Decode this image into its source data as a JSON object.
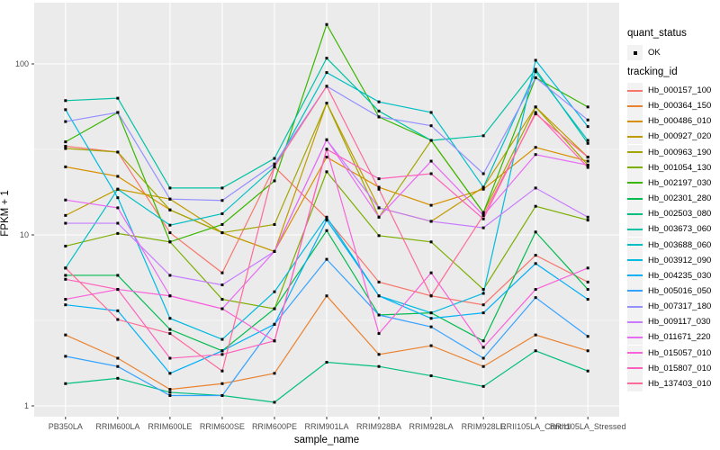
{
  "legend": {
    "quant_title": "quant_status",
    "quant_item": "OK",
    "series_title": "tracking_id"
  },
  "chart_data": {
    "type": "line",
    "title": "",
    "xlabel": "sample_name",
    "ylabel": "FPKM + 1",
    "y_scale": "log10",
    "ylim": [
      0.87,
      200
    ],
    "y_ticks": [
      1,
      10,
      100
    ],
    "y_minor_ticks": [
      3.162,
      31.62
    ],
    "grid": "white-on-gray-panel",
    "panel_bg": "#EBEBEB",
    "key_bg": "#F2F2F2",
    "marker": "small-black-square",
    "legend_position": "right",
    "quant_status_values": [
      "OK"
    ],
    "categories": [
      "PB350LA",
      "RRIM600LA",
      "RRIM600LE",
      "RRIM600SE",
      "RRIM600PE",
      "RRIM901LA",
      "RRIM928BA",
      "RRIM928LA",
      "RRIM928LE",
      "RRII105LA_Control",
      "RRII105LA_Stressed"
    ],
    "series": [
      {
        "name": "Hb_000157_100",
        "color": "#F8766D",
        "values": [
          33,
          30.5,
          10.3,
          6.0,
          25,
          12.5,
          5.3,
          4.4,
          3.9,
          7.6,
          5.3
        ]
      },
      {
        "name": "Hb_000364_150",
        "color": "#EA8331",
        "values": [
          2.6,
          1.9,
          1.25,
          1.35,
          1.55,
          4.4,
          2.0,
          2.25,
          1.7,
          2.6,
          2.1
        ]
      },
      {
        "name": "Hb_000486_010",
        "color": "#D89000",
        "values": [
          25,
          22,
          14,
          10.3,
          8.0,
          28.5,
          19,
          14.9,
          18.5,
          32.5,
          27
        ]
      },
      {
        "name": "Hb_000927_020",
        "color": "#C09B00",
        "values": [
          13,
          18.5,
          16.2,
          10.3,
          8.0,
          59,
          14.4,
          12,
          19,
          56,
          28.5
        ]
      },
      {
        "name": "Hb_000963_190",
        "color": "#A3A500",
        "values": [
          32,
          30.5,
          14,
          10.3,
          11.5,
          59,
          12.7,
          35.7,
          13.5,
          56,
          25.6
        ]
      },
      {
        "name": "Hb_001054_130",
        "color": "#7CAE00",
        "values": [
          8.6,
          10.2,
          9.1,
          4.2,
          3.7,
          23.4,
          9.9,
          9.1,
          4.8,
          14.7,
          12.2
        ]
      },
      {
        "name": "Hb_002197_030",
        "color": "#39B600",
        "values": [
          35,
          52,
          9.1,
          11.5,
          20.7,
          170,
          49,
          35.7,
          13.5,
          83,
          56
        ]
      },
      {
        "name": "Hb_002301_280",
        "color": "#00BB4E",
        "values": [
          5.8,
          5.8,
          2.8,
          2.1,
          3.7,
          10.6,
          3.4,
          3.5,
          2.4,
          10.4,
          4.8
        ]
      },
      {
        "name": "Hb_002503_080",
        "color": "#00BF7D",
        "values": [
          1.35,
          1.45,
          1.2,
          1.15,
          1.05,
          1.8,
          1.7,
          1.5,
          1.3,
          2.1,
          1.6
        ]
      },
      {
        "name": "Hb_003673_060",
        "color": "#00C1A3",
        "values": [
          61,
          63,
          18.8,
          18.8,
          28,
          108,
          53,
          35.7,
          38,
          93,
          34.3
        ]
      },
      {
        "name": "Hb_003688_060",
        "color": "#00BFC4",
        "values": [
          6.4,
          18.5,
          11.4,
          13.3,
          25,
          89,
          60,
          52,
          19,
          90,
          35.7
        ]
      },
      {
        "name": "Hb_003912_090",
        "color": "#00BAE0",
        "values": [
          54,
          16.5,
          3.25,
          2.45,
          4.65,
          12.7,
          4.4,
          3.5,
          4.55,
          105,
          43
        ]
      },
      {
        "name": "Hb_004235_030",
        "color": "#00B0F6",
        "values": [
          3.9,
          3.6,
          1.55,
          2.1,
          3.0,
          12.2,
          4.4,
          3.25,
          3.5,
          6.8,
          4.2
        ]
      },
      {
        "name": "Hb_005016_050",
        "color": "#35A2FF",
        "values": [
          1.95,
          1.7,
          1.15,
          1.15,
          3.0,
          7.2,
          3.4,
          2.9,
          1.9,
          4.3,
          2.55
        ]
      },
      {
        "name": "Hb_007317_180",
        "color": "#9590FF",
        "values": [
          46,
          52,
          16.2,
          15.9,
          26,
          74,
          49,
          43.5,
          22.8,
          83,
          47
        ]
      },
      {
        "name": "Hb_009117_030",
        "color": "#C77CFF",
        "values": [
          11.7,
          11.7,
          5.8,
          5.1,
          8.0,
          36,
          14.4,
          12,
          11,
          18.8,
          12.7
        ]
      },
      {
        "name": "Hb_011671_220",
        "color": "#E76BF3",
        "values": [
          16,
          14.4,
          4.4,
          3.7,
          8.0,
          36,
          12.7,
          27,
          13,
          29.5,
          25.6
        ]
      },
      {
        "name": "Hb_015057_010",
        "color": "#FA62DB",
        "values": [
          4.2,
          4.8,
          4.4,
          3.7,
          2.4,
          31.7,
          2.65,
          6.0,
          2.2,
          4.8,
          6.4
        ]
      },
      {
        "name": "Hb_015807_010",
        "color": "#FF62BC",
        "values": [
          5.5,
          4.8,
          1.9,
          2.0,
          2.4,
          31.7,
          21.3,
          22.8,
          12.4,
          52,
          24.8
        ]
      },
      {
        "name": "Hb_137403_010",
        "color": "#FF6A98",
        "values": [
          6.4,
          3.2,
          2.65,
          1.6,
          25,
          74,
          18.5,
          4.4,
          13,
          51,
          28.5
        ]
      }
    ]
  }
}
